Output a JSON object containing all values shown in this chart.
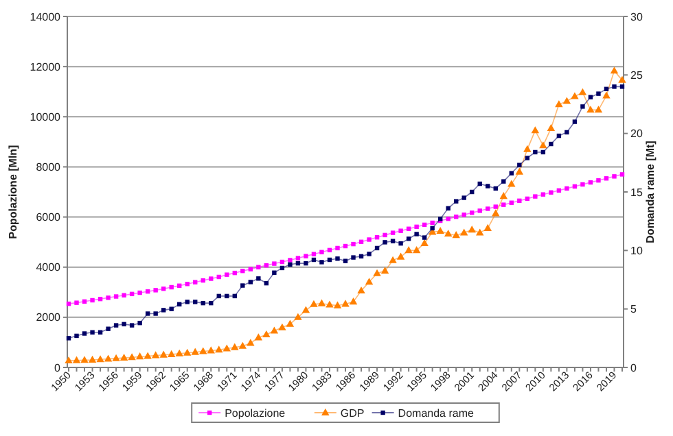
{
  "chart_data": {
    "type": "line",
    "xlabel": null,
    "ylabel": "Popolazione [Mln]",
    "y2label": "Domanda rame [Mt]",
    "categories": [
      "1950",
      null,
      null,
      "1953",
      null,
      null,
      "1956",
      null,
      null,
      "1959",
      null,
      null,
      "1962",
      null,
      null,
      "1965",
      null,
      null,
      "1968",
      null,
      null,
      "1971",
      null,
      null,
      "1974",
      null,
      null,
      "1977",
      null,
      null,
      "1980",
      null,
      null,
      "1983",
      null,
      null,
      "1986",
      null,
      null,
      "1989",
      null,
      null,
      "1992",
      null,
      null,
      "1995",
      null,
      null,
      "1998",
      null,
      null,
      "2001",
      null,
      null,
      "2004",
      null,
      null,
      "2007",
      null,
      null,
      "2010",
      null,
      null,
      "2013",
      null,
      null,
      "2016",
      null,
      null,
      "2019",
      null
    ],
    "series": [
      {
        "name": "Popolazione",
        "color": "#ff00ff",
        "marker": "square",
        "values": [
          2540,
          2580,
          2630,
          2680,
          2730,
          2780,
          2830,
          2880,
          2930,
          2980,
          3030,
          3080,
          3140,
          3200,
          3260,
          3330,
          3400,
          3470,
          3540,
          3610,
          3700,
          3770,
          3850,
          3920,
          4000,
          4070,
          4140,
          4210,
          4280,
          4360,
          4440,
          4520,
          4600,
          4680,
          4760,
          4840,
          4920,
          5010,
          5100,
          5190,
          5280,
          5370,
          5450,
          5530,
          5610,
          5690,
          5770,
          5850,
          5930,
          6010,
          6090,
          6170,
          6250,
          6330,
          6410,
          6490,
          6570,
          6650,
          6730,
          6820,
          6900,
          6980,
          7060,
          7140,
          7220,
          7300,
          7380,
          7460,
          7540,
          7620,
          7700
        ]
      },
      {
        "name": "GDP",
        "color": "#ff8000",
        "marker": "triangle",
        "values": [
          270,
          280,
          290,
          300,
          320,
          340,
          360,
          380,
          400,
          430,
          450,
          480,
          500,
          520,
          550,
          580,
          610,
          640,
          670,
          700,
          750,
          800,
          850,
          970,
          1190,
          1310,
          1460,
          1590,
          1730,
          2000,
          2280,
          2520,
          2550,
          2500,
          2470,
          2530,
          2620,
          3060,
          3410,
          3750,
          3850,
          4270,
          4410,
          4670,
          4670,
          4950,
          5400,
          5440,
          5330,
          5270,
          5370,
          5490,
          5370,
          5550,
          6140,
          6830,
          7310,
          7800,
          8700,
          9450,
          8850,
          9540,
          10490,
          10620,
          10810,
          10970,
          10270,
          10270,
          10840,
          11830,
          11460
        ]
      },
      {
        "name": "Domanda rame",
        "color": "#000066",
        "marker": "square",
        "axis": "y2",
        "values": [
          2.5,
          2.7,
          2.9,
          3.0,
          3.0,
          3.3,
          3.6,
          3.7,
          3.6,
          3.8,
          4.6,
          4.6,
          4.9,
          5.0,
          5.4,
          5.6,
          5.6,
          5.5,
          5.5,
          6.1,
          6.1,
          6.1,
          7.0,
          7.3,
          7.6,
          7.2,
          8.1,
          8.5,
          8.8,
          8.9,
          8.9,
          9.2,
          9.0,
          9.2,
          9.3,
          9.1,
          9.4,
          9.5,
          9.7,
          10.2,
          10.7,
          10.8,
          10.6,
          11.0,
          11.4,
          11.1,
          11.9,
          12.7,
          13.6,
          14.2,
          14.5,
          15.0,
          15.7,
          15.5,
          15.3,
          15.9,
          16.6,
          17.3,
          17.9,
          18.4,
          18.4,
          19.1,
          19.8,
          20.1,
          21.0,
          22.3,
          23.1,
          23.4,
          23.8,
          24.0,
          24.0
        ]
      }
    ],
    "ylim": [
      0,
      14000
    ],
    "yticks": [
      0,
      2000,
      4000,
      6000,
      8000,
      10000,
      12000,
      14000
    ],
    "y2lim": [
      0,
      30
    ],
    "y2ticks": [
      0,
      5,
      10,
      15,
      20,
      25,
      30
    ],
    "grid": "y",
    "legend": "bottom"
  }
}
